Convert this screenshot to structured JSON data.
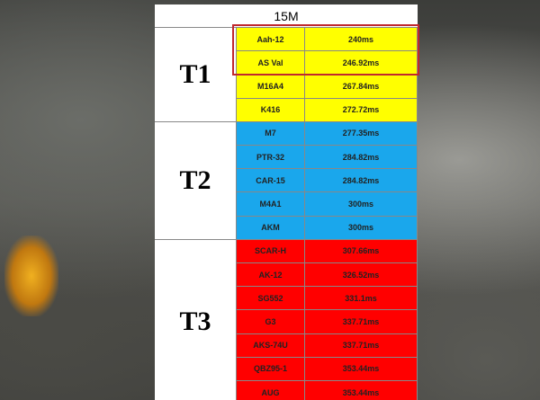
{
  "header": {
    "title": "15M"
  },
  "tiers": [
    {
      "name": "T1",
      "color": "#ffff00",
      "rows": [
        [
          "Aah-12",
          "240ms"
        ],
        [
          "AS Val",
          "246.92ms"
        ],
        [
          "M16A4",
          "267.84ms"
        ],
        [
          "K416",
          "272.72ms"
        ]
      ]
    },
    {
      "name": "T2",
      "color": "#1aa7ec",
      "rows": [
        [
          "M7",
          "277.35ms"
        ],
        [
          "PTR-32",
          "284.82ms"
        ],
        [
          "CAR-15",
          "284.82ms"
        ],
        [
          "M4A1",
          "300ms"
        ],
        [
          "AKM",
          "300ms"
        ]
      ]
    },
    {
      "name": "T3",
      "color": "#ff0000",
      "rows": [
        [
          "SCAR-H",
          "307.66ms"
        ],
        [
          "AK-12",
          "326.52ms"
        ],
        [
          "SG552",
          "331.1ms"
        ],
        [
          "G3",
          "337.71ms"
        ],
        [
          "AKS-74U",
          "337.71ms"
        ],
        [
          "QBZ95-1",
          "353.44ms"
        ],
        [
          "AUG",
          "353.44ms"
        ]
      ]
    }
  ]
}
